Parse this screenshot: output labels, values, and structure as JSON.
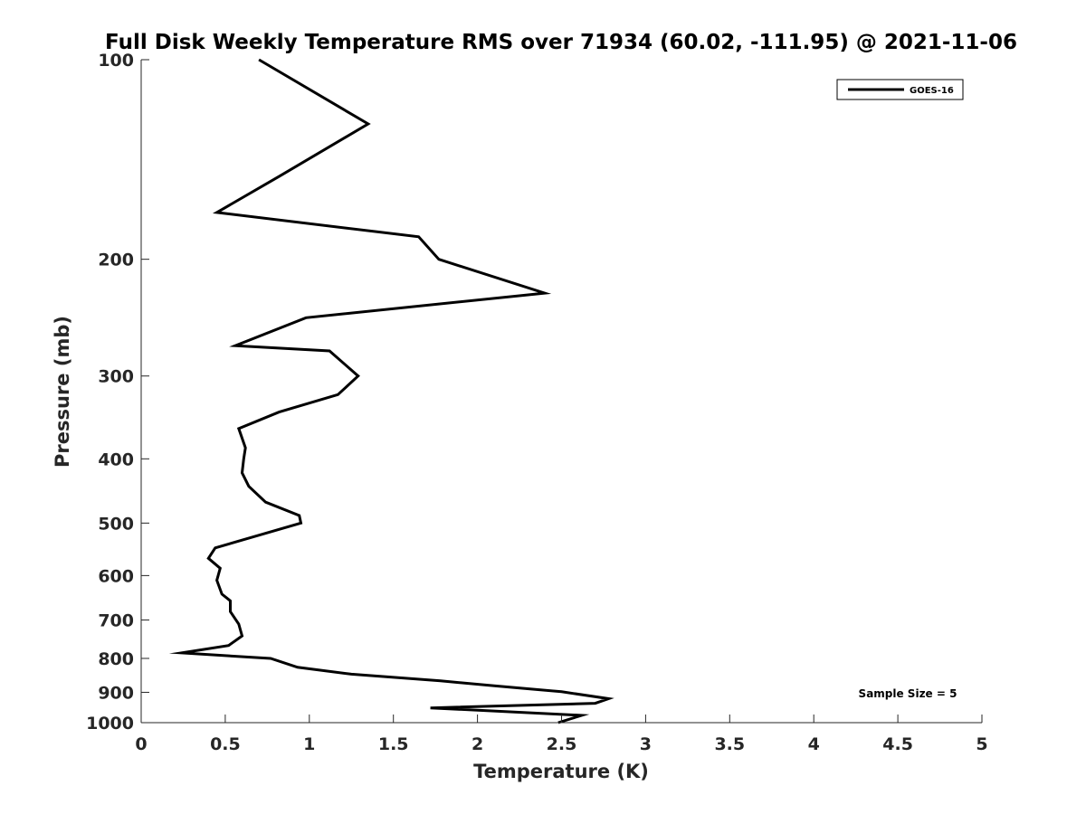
{
  "chart_data": {
    "type": "line",
    "title": "Full Disk Weekly Temperature RMS over 71934 (60.02, -111.95) @ 2021-11-06",
    "xlabel": "Temperature (K)",
    "ylabel": "Pressure (mb)",
    "xlim": [
      0,
      5
    ],
    "ylim": [
      100,
      1000
    ],
    "y_scale": "log",
    "y_reversed": true,
    "grid": false,
    "legend_position": "top-right",
    "x_ticks": [
      "0",
      "0.5",
      "1",
      "1.5",
      "2",
      "2.5",
      "3",
      "3.5",
      "4",
      "4.5",
      "5"
    ],
    "y_ticks": [
      "100",
      "200",
      "300",
      "400",
      "500",
      "600",
      "700",
      "800",
      "900",
      "1000"
    ],
    "series": [
      {
        "name": "GOES-16",
        "color": "#000000",
        "x": [
          0.7,
          1.35,
          0.82,
          0.45,
          1.65,
          1.77,
          2.4,
          0.98,
          0.56,
          1.12,
          1.29,
          1.17,
          0.82,
          0.58,
          0.62,
          0.61,
          0.6,
          0.64,
          0.74,
          0.94,
          0.95,
          0.66,
          0.44,
          0.4,
          0.47,
          0.45,
          0.48,
          0.53,
          0.53,
          0.58,
          0.6,
          0.52,
          0.24,
          0.77,
          0.93,
          1.25,
          1.78,
          2.1,
          2.5,
          2.78,
          2.7,
          1.72,
          2.62,
          2.48
        ],
        "y": [
          100,
          125,
          150,
          170,
          185,
          200,
          225,
          245,
          270,
          275,
          300,
          320,
          340,
          360,
          385,
          400,
          420,
          440,
          465,
          487,
          500,
          525,
          545,
          565,
          585,
          610,
          640,
          655,
          680,
          710,
          740,
          765,
          785,
          800,
          825,
          845,
          865,
          880,
          898,
          920,
          935,
          950,
          975,
          1000
        ]
      }
    ],
    "annotations": [
      "Sample Size = 5"
    ]
  }
}
